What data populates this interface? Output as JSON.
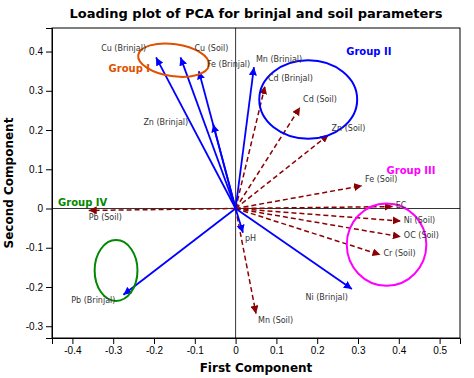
{
  "chart_data": {
    "type": "biplot",
    "title": "Loading plot of PCA for brinjal and soil parameters",
    "xlabel": "First Component",
    "ylabel": "Second Component",
    "xlim": [
      -0.45,
      0.55
    ],
    "ylim": [
      -0.33,
      0.46
    ],
    "xticks": [
      -0.4,
      -0.3,
      -0.2,
      -0.1,
      0.0,
      0.1,
      0.2,
      0.3,
      0.4,
      0.5
    ],
    "yticks": [
      -0.3,
      -0.2,
      -0.1,
      0.0,
      0.1,
      0.2,
      0.3,
      0.4
    ],
    "grid": false,
    "vectors": [
      {
        "color": "darkred",
        "line_style": "dashed",
        "labels": [
          "Cd (Brinjal)",
          "Cd (Soil)",
          "Zn (Soil)",
          "Fe (Soil)",
          "EC",
          "Ni (Soil)",
          "OC (Soil)",
          "Cr (Soil)",
          "Pb (Soil)",
          "Mn (Soil)"
        ],
        "x": [
          0.072,
          0.158,
          0.228,
          0.31,
          0.385,
          0.405,
          0.405,
          0.355,
          -0.36,
          0.05
        ],
        "y": [
          0.312,
          0.258,
          0.188,
          0.058,
          0.005,
          -0.032,
          -0.072,
          -0.118,
          -0.005,
          -0.268
        ]
      },
      {
        "color": "blue",
        "line_style": "solid",
        "labels": [
          "Cu (Brinjal)",
          "Cu (Soil)",
          "Fe (Brinjal)",
          "Zn (Brinjal)",
          "Mn (Brinjal)",
          "Ni (Brinjal)",
          "Pb (Brinjal)",
          "pH"
        ],
        "x": [
          -0.195,
          -0.135,
          -0.09,
          -0.055,
          0.045,
          0.285,
          -0.275,
          0.018
        ],
        "y": [
          0.385,
          0.385,
          0.35,
          0.215,
          0.36,
          -0.205,
          -0.22,
          -0.062
        ]
      }
    ],
    "ellipses": [
      {
        "label": "Group I",
        "color": "#e05000",
        "cx": -0.152,
        "cy": 0.378,
        "width": 0.175,
        "height": 0.082,
        "angle": -8
      },
      {
        "label": "Group II",
        "color": "blue",
        "cx": 0.178,
        "cy": 0.278,
        "width": 0.24,
        "height": 0.2,
        "angle": 0
      },
      {
        "label": "Group III",
        "color": "magenta",
        "cx": 0.37,
        "cy": -0.092,
        "width": 0.195,
        "height": 0.21,
        "angle": 0
      },
      {
        "label": "Group IV",
        "color": "#008800",
        "cx": -0.293,
        "cy": -0.158,
        "width": 0.105,
        "height": 0.155,
        "angle": 0
      }
    ]
  }
}
